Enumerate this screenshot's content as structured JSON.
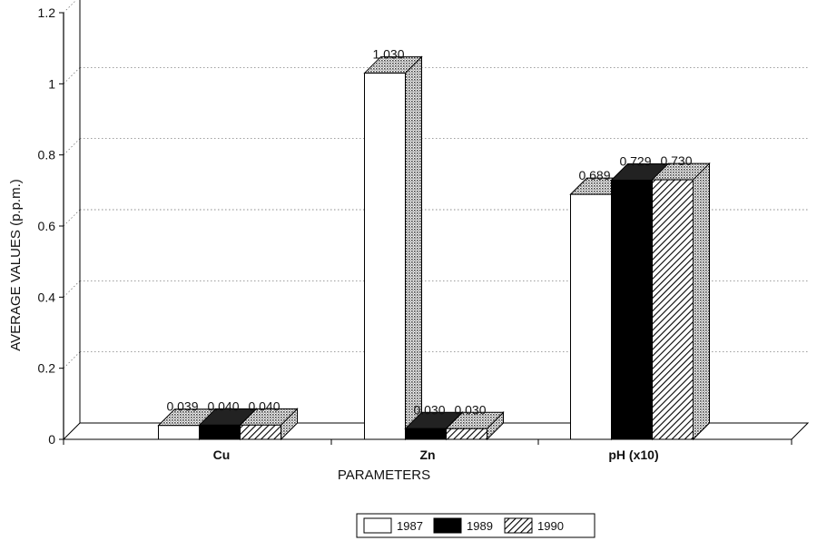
{
  "chart_data": {
    "type": "bar",
    "categories": [
      "Cu",
      "Zn",
      "pH (x10)"
    ],
    "series": [
      {
        "name": "1987",
        "values": [
          0.039,
          1.03,
          0.689
        ],
        "labels": [
          "0.039",
          "1.030",
          "0.689"
        ],
        "pattern": "white"
      },
      {
        "name": "1989",
        "values": [
          0.04,
          0.03,
          0.729
        ],
        "labels": [
          "0.040",
          "0.030",
          "0.729"
        ],
        "pattern": "black"
      },
      {
        "name": "1990",
        "values": [
          0.04,
          0.03,
          0.73
        ],
        "labels": [
          "0.040",
          "0.030",
          "0.730"
        ],
        "pattern": "hatch"
      }
    ],
    "xlabel": "PARAMETERS",
    "ylabel": "AVERAGE VALUES (p.p.m.)",
    "ylim": [
      0,
      1.2
    ],
    "yticks": [
      0,
      0.2,
      0.4,
      0.6,
      0.8,
      1,
      1.2
    ],
    "ytick_labels": [
      "0",
      "0.2",
      "0.4",
      "0.6",
      "0.8",
      "1",
      "1.2"
    ],
    "grid": "horizontal-dotted",
    "legend_position": "bottom-center",
    "style": "3d"
  }
}
